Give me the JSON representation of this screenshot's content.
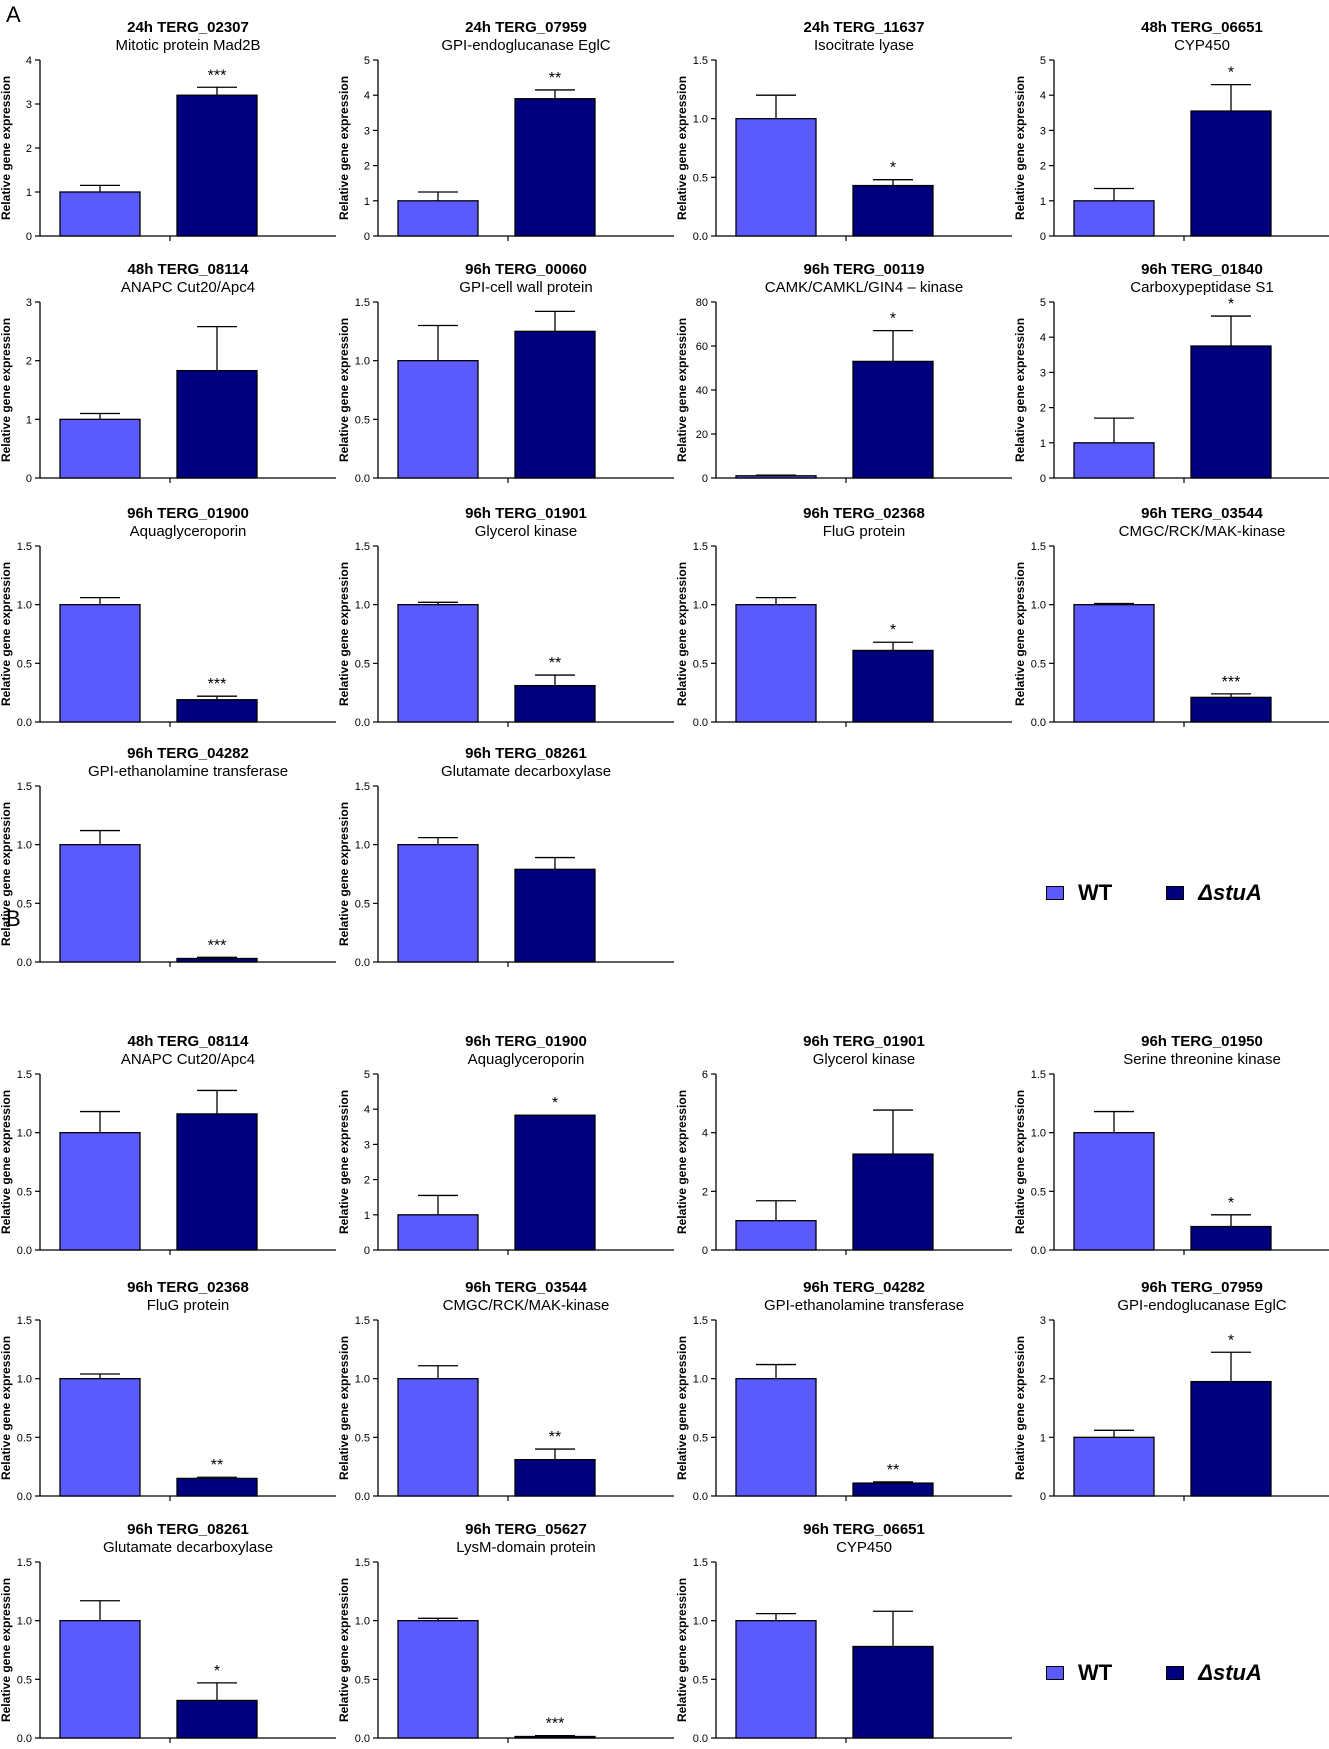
{
  "figure": {
    "panel_labels": [
      "A",
      "B"
    ],
    "y_axis_label": "Relative gene expression",
    "colors": {
      "wt": "#5a5aff",
      "stua": "#00007e"
    }
  },
  "legend": {
    "wt_label": "WT",
    "stua_label": "ΔstuA"
  },
  "chart_data": [
    {
      "type": "bar",
      "panel": "A",
      "title": "24h TERG_02307",
      "subtitle": "Mitotic protein Mad2B",
      "categories": [
        "WT",
        "ΔstuA"
      ],
      "values": [
        1.0,
        3.2
      ],
      "errors": [
        0.15,
        0.18
      ],
      "significance": [
        "",
        "***"
      ],
      "ylim": [
        0,
        4
      ],
      "yticks": [
        "0",
        "1",
        "2",
        "3",
        "4"
      ]
    },
    {
      "type": "bar",
      "panel": "A",
      "title": "24h TERG_07959",
      "subtitle": "GPI-endoglucanase EglC",
      "categories": [
        "WT",
        "ΔstuA"
      ],
      "values": [
        1.0,
        3.9
      ],
      "errors": [
        0.25,
        0.25
      ],
      "significance": [
        "",
        "**"
      ],
      "ylim": [
        0,
        5
      ],
      "yticks": [
        "0",
        "1",
        "2",
        "3",
        "4",
        "5"
      ]
    },
    {
      "type": "bar",
      "panel": "A",
      "title": "24h TERG_11637",
      "subtitle": "Isocitrate lyase",
      "categories": [
        "WT",
        "ΔstuA"
      ],
      "values": [
        1.0,
        0.43
      ],
      "errors": [
        0.2,
        0.05
      ],
      "significance": [
        "",
        "*"
      ],
      "ylim": [
        0,
        1.5
      ],
      "yticks": [
        "0.0",
        "0.5",
        "1.0",
        "1.5"
      ]
    },
    {
      "type": "bar",
      "panel": "A",
      "title": "48h TERG_06651",
      "subtitle": "CYP450",
      "categories": [
        "WT",
        "ΔstuA"
      ],
      "values": [
        1.0,
        3.55
      ],
      "errors": [
        0.35,
        0.75
      ],
      "significance": [
        "",
        "*"
      ],
      "ylim": [
        0,
        5
      ],
      "yticks": [
        "0",
        "1",
        "2",
        "3",
        "4",
        "5"
      ]
    },
    {
      "type": "bar",
      "panel": "A",
      "title": "48h TERG_08114",
      "subtitle": "ANAPC Cut20/Apc4",
      "categories": [
        "WT",
        "ΔstuA"
      ],
      "values": [
        1.0,
        1.83
      ],
      "errors": [
        0.1,
        0.75
      ],
      "significance": [
        "",
        ""
      ],
      "ylim": [
        0,
        3
      ],
      "yticks": [
        "0",
        "1",
        "2",
        "3"
      ]
    },
    {
      "type": "bar",
      "panel": "A",
      "title": "96h TERG_00060",
      "subtitle": "GPI-cell wall protein",
      "categories": [
        "WT",
        "ΔstuA"
      ],
      "values": [
        1.0,
        1.25
      ],
      "errors": [
        0.3,
        0.17
      ],
      "significance": [
        "",
        ""
      ],
      "ylim": [
        0,
        1.5
      ],
      "yticks": [
        "0.0",
        "0.5",
        "1.0",
        "1.5"
      ]
    },
    {
      "type": "bar",
      "panel": "A",
      "title": "96h TERG_00119",
      "subtitle": "CAMK/CAMKL/GIN4 – kinase",
      "categories": [
        "WT",
        "ΔstuA"
      ],
      "values": [
        1.0,
        53.0
      ],
      "errors": [
        0.3,
        14.0
      ],
      "significance": [
        "",
        "*"
      ],
      "ylim": [
        0,
        80
      ],
      "yticks": [
        "0",
        "20",
        "40",
        "60",
        "80"
      ]
    },
    {
      "type": "bar",
      "panel": "A",
      "title": "96h TERG_01840",
      "subtitle": "Carboxypeptidase S1",
      "categories": [
        "WT",
        "ΔstuA"
      ],
      "values": [
        1.0,
        3.75
      ],
      "errors": [
        0.7,
        0.85
      ],
      "significance": [
        "",
        "*"
      ],
      "ylim": [
        0,
        5
      ],
      "yticks": [
        "0",
        "1",
        "2",
        "3",
        "4",
        "5"
      ]
    },
    {
      "type": "bar",
      "panel": "A",
      "title": "96h TERG_01900",
      "subtitle": "Aquaglyceroporin",
      "categories": [
        "WT",
        "ΔstuA"
      ],
      "values": [
        1.0,
        0.19
      ],
      "errors": [
        0.06,
        0.03
      ],
      "significance": [
        "",
        "***"
      ],
      "ylim": [
        0,
        1.5
      ],
      "yticks": [
        "0.0",
        "0.5",
        "1.0",
        "1.5"
      ]
    },
    {
      "type": "bar",
      "panel": "A",
      "title": "96h TERG_01901",
      "subtitle": "Glycerol kinase",
      "categories": [
        "WT",
        "ΔstuA"
      ],
      "values": [
        1.0,
        0.31
      ],
      "errors": [
        0.02,
        0.09
      ],
      "significance": [
        "",
        "**"
      ],
      "ylim": [
        0,
        1.5
      ],
      "yticks": [
        "0.0",
        "0.5",
        "1.0",
        "1.5"
      ]
    },
    {
      "type": "bar",
      "panel": "A",
      "title": "96h TERG_02368",
      "subtitle": "FluG protein",
      "categories": [
        "WT",
        "ΔstuA"
      ],
      "values": [
        1.0,
        0.61
      ],
      "errors": [
        0.06,
        0.07
      ],
      "significance": [
        "",
        "*"
      ],
      "ylim": [
        0,
        1.5
      ],
      "yticks": [
        "0.0",
        "0.5",
        "1.0",
        "1.5"
      ]
    },
    {
      "type": "bar",
      "panel": "A",
      "title": "96h TERG_03544",
      "subtitle": "CMGC/RCK/MAK-kinase",
      "categories": [
        "WT",
        "ΔstuA"
      ],
      "values": [
        1.0,
        0.21
      ],
      "errors": [
        0.01,
        0.03
      ],
      "significance": [
        "",
        "***"
      ],
      "ylim": [
        0,
        1.5
      ],
      "yticks": [
        "0.0",
        "0.5",
        "1.0",
        "1.5"
      ]
    },
    {
      "type": "bar",
      "panel": "A",
      "title": "96h TERG_04282",
      "subtitle": "GPI-ethanolamine transferase",
      "categories": [
        "WT",
        "ΔstuA"
      ],
      "values": [
        1.0,
        0.03
      ],
      "errors": [
        0.12,
        0.01
      ],
      "significance": [
        "",
        "***"
      ],
      "ylim": [
        0,
        1.5
      ],
      "yticks": [
        "0.0",
        "0.5",
        "1.0",
        "1.5"
      ]
    },
    {
      "type": "bar",
      "panel": "A",
      "title": "96h TERG_08261",
      "subtitle": "Glutamate decarboxylase",
      "categories": [
        "WT",
        "ΔstuA"
      ],
      "values": [
        1.0,
        0.79
      ],
      "errors": [
        0.06,
        0.1
      ],
      "significance": [
        "",
        ""
      ],
      "ylim": [
        0,
        1.5
      ],
      "yticks": [
        "0.0",
        "0.5",
        "1.0",
        "1.5"
      ]
    },
    {
      "type": "bar",
      "panel": "B",
      "title": "48h TERG_08114",
      "subtitle": "ANAPC Cut20/Apc4",
      "categories": [
        "WT",
        "ΔstuA"
      ],
      "values": [
        1.0,
        1.16
      ],
      "errors": [
        0.18,
        0.2
      ],
      "significance": [
        "",
        ""
      ],
      "ylim": [
        0,
        1.5
      ],
      "yticks": [
        "0.0",
        "0.5",
        "1.0",
        "1.5"
      ]
    },
    {
      "type": "bar",
      "panel": "B",
      "title": "96h TERG_01900",
      "subtitle": "Aquaglyceroporin",
      "categories": [
        "WT",
        "ΔstuA"
      ],
      "values": [
        1.0,
        3.83
      ],
      "errors": [
        0.55,
        0.0
      ],
      "significance": [
        "",
        "*"
      ],
      "ylim": [
        0,
        5
      ],
      "yticks": [
        "0",
        "1",
        "2",
        "3",
        "4",
        "5"
      ]
    },
    {
      "type": "bar",
      "panel": "B",
      "title": "96h TERG_01901",
      "subtitle": "Glycerol kinase",
      "categories": [
        "WT",
        "ΔstuA"
      ],
      "values": [
        1.0,
        3.27
      ],
      "errors": [
        0.68,
        1.5
      ],
      "significance": [
        "",
        ""
      ],
      "ylim": [
        0,
        6
      ],
      "yticks": [
        "0",
        "2",
        "4",
        "6"
      ]
    },
    {
      "type": "bar",
      "panel": "B",
      "title": "96h TERG_01950",
      "subtitle": "Serine threonine kinase",
      "categories": [
        "WT",
        "ΔstuA"
      ],
      "values": [
        1.0,
        0.2
      ],
      "errors": [
        0.18,
        0.1
      ],
      "significance": [
        "",
        "*"
      ],
      "ylim": [
        0,
        1.5
      ],
      "yticks": [
        "0.0",
        "0.5",
        "1.0",
        "1.5"
      ]
    },
    {
      "type": "bar",
      "panel": "B",
      "title": "96h TERG_02368",
      "subtitle": "FluG protein",
      "categories": [
        "WT",
        "ΔstuA"
      ],
      "values": [
        1.0,
        0.15
      ],
      "errors": [
        0.04,
        0.01
      ],
      "significance": [
        "",
        "**"
      ],
      "ylim": [
        0,
        1.5
      ],
      "yticks": [
        "0.0",
        "0.5",
        "1.0",
        "1.5"
      ]
    },
    {
      "type": "bar",
      "panel": "B",
      "title": "96h TERG_03544",
      "subtitle": "CMGC/RCK/MAK-kinase",
      "categories": [
        "WT",
        "ΔstuA"
      ],
      "values": [
        1.0,
        0.31
      ],
      "errors": [
        0.11,
        0.09
      ],
      "significance": [
        "",
        "**"
      ],
      "ylim": [
        0,
        1.5
      ],
      "yticks": [
        "0.0",
        "0.5",
        "1.0",
        "1.5"
      ]
    },
    {
      "type": "bar",
      "panel": "B",
      "title": "96h TERG_04282",
      "subtitle": "GPI-ethanolamine transferase",
      "categories": [
        "WT",
        "ΔstuA"
      ],
      "values": [
        1.0,
        0.11
      ],
      "errors": [
        0.12,
        0.01
      ],
      "significance": [
        "",
        "**"
      ],
      "ylim": [
        0,
        1.5
      ],
      "yticks": [
        "0.0",
        "0.5",
        "1.0",
        "1.5"
      ]
    },
    {
      "type": "bar",
      "panel": "B",
      "title": "96h TERG_07959",
      "subtitle": "GPI-endoglucanase EglC",
      "categories": [
        "WT",
        "ΔstuA"
      ],
      "values": [
        1.0,
        1.95
      ],
      "errors": [
        0.12,
        0.5
      ],
      "significance": [
        "",
        "*"
      ],
      "ylim": [
        0,
        3
      ],
      "yticks": [
        "0",
        "1",
        "2",
        "3"
      ]
    },
    {
      "type": "bar",
      "panel": "B",
      "title": "96h TERG_08261",
      "subtitle": "Glutamate decarboxylase",
      "categories": [
        "WT",
        "ΔstuA"
      ],
      "values": [
        1.0,
        0.32
      ],
      "errors": [
        0.17,
        0.15
      ],
      "significance": [
        "",
        "*"
      ],
      "ylim": [
        0,
        1.5
      ],
      "yticks": [
        "0.0",
        "0.5",
        "1.0",
        "1.5"
      ]
    },
    {
      "type": "bar",
      "panel": "B",
      "title": "96h TERG_05627",
      "subtitle": "LysM-domain  protein",
      "categories": [
        "WT",
        "ΔstuA"
      ],
      "values": [
        1.0,
        0.01
      ],
      "errors": [
        0.02,
        0.01
      ],
      "significance": [
        "",
        "***"
      ],
      "ylim": [
        0,
        1.5
      ],
      "yticks": [
        "0.0",
        "0.5",
        "1.0",
        "1.5"
      ]
    },
    {
      "type": "bar",
      "panel": "B",
      "title": "96h TERG_06651",
      "subtitle": "CYP450",
      "categories": [
        "WT",
        "ΔstuA"
      ],
      "values": [
        1.0,
        0.78
      ],
      "errors": [
        0.06,
        0.3
      ],
      "significance": [
        "",
        ""
      ],
      "ylim": [
        0,
        1.5
      ],
      "yticks": [
        "0.0",
        "0.5",
        "1.0",
        "1.5"
      ]
    }
  ]
}
